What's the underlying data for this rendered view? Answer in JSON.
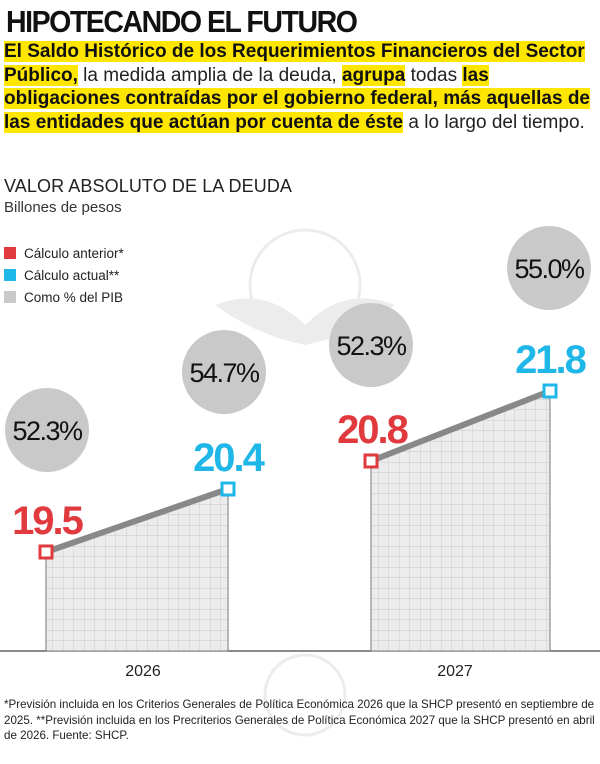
{
  "header": {
    "title": "HIPOTECANDO EL FUTURO",
    "intro": [
      {
        "text": "El Saldo Histórico de los Requerimientos Financieros del Sector Público,",
        "style": "hl"
      },
      {
        "text": " la medida amplia de la deuda, ",
        "style": "plain"
      },
      {
        "text": "agrupa",
        "style": "hl"
      },
      {
        "text": " todas ",
        "style": "plain"
      },
      {
        "text": "las obligaciones contraídas por el gobierno federal, más aquellas de las entidades que actúan por cuenta de éste",
        "style": "hl"
      },
      {
        "text": " a lo largo del tiempo.",
        "style": "plain"
      }
    ]
  },
  "chart_data": {
    "type": "area",
    "title": "VALOR ABSOLUTO DE LA DEUDA",
    "subtitle": "Billones de pesos",
    "categories": [
      "2026",
      "2027"
    ],
    "legend": [
      {
        "label": "Cálculo anterior*",
        "color": "#e03a3e"
      },
      {
        "label": "Cálculo actual**",
        "color": "#1fb6e8"
      },
      {
        "label": "Como % del PIB",
        "color": "#c9c9c9"
      }
    ],
    "groups": [
      {
        "category": "2026",
        "anterior": 19.5,
        "actual": 20.4,
        "pib_anterior": "52.3%",
        "pib_actual": "54.7%"
      },
      {
        "category": "2027",
        "anterior": 20.8,
        "actual": 21.8,
        "pib_anterior": "52.3%",
        "pib_actual": "55.0%"
      }
    ],
    "ylim": [
      17.4,
      22.4
    ],
    "grid": true,
    "legend_position": "top-left"
  },
  "colors": {
    "highlight": "#ffe600",
    "anterior": "#e03a3e",
    "actual": "#1fb6e8",
    "bubble": "#c9c9c9",
    "area": "#ececec",
    "line": "#888888"
  },
  "footnote": "*Previsión incluida en los Criterios Generales de Política Económica 2026 que la SHCP presentó en septiembre de 2025. **Previsión incluida en los Precriterios Generales de Política Económica 2027 que la SHCP presentó en abril de 2026. Fuente: SHCP."
}
